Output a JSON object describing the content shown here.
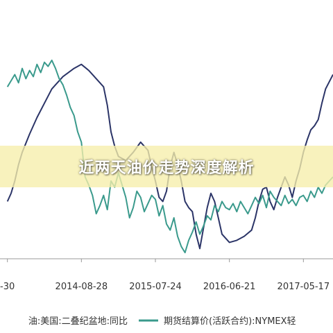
{
  "chart_data": {
    "type": "line",
    "title": "",
    "xlabel": "",
    "ylabel": "",
    "x_tick_labels": [
      "-30",
      "2014-08-28",
      "2015-07-24",
      "2016-06-21",
      "2017-05-17"
    ],
    "x_tick_positions": [
      0.0,
      1.0,
      2.0,
      3.0,
      4.0
    ],
    "xlim": [
      -0.1,
      4.4
    ],
    "ylim": [
      0,
      100
    ],
    "grid": false,
    "legend_placement": "bottom",
    "series": [
      {
        "name": "油:美国:二叠纪盆地:同比",
        "color": "#2b3467",
        "x": [
          0.0,
          0.05,
          0.1,
          0.15,
          0.2,
          0.3,
          0.4,
          0.5,
          0.6,
          0.75,
          0.9,
          1.0,
          1.1,
          1.2,
          1.3,
          1.35,
          1.4,
          1.45,
          1.5,
          1.6,
          1.7,
          1.8,
          1.9,
          1.95,
          2.0,
          2.05,
          2.1,
          2.15,
          2.2,
          2.25,
          2.3,
          2.35,
          2.4,
          2.45,
          2.5,
          2.55,
          2.6,
          2.65,
          2.7,
          2.75,
          2.8,
          2.85,
          2.9,
          3.0,
          3.1,
          3.2,
          3.3,
          3.35,
          3.4,
          3.45,
          3.5,
          3.55,
          3.6,
          3.65,
          3.7,
          3.75,
          3.8,
          3.85,
          3.9,
          3.95,
          4.0,
          4.05,
          4.1,
          4.15,
          4.2,
          4.25,
          4.3,
          4.4
        ],
        "values": [
          28,
          32,
          38,
          46,
          52,
          61,
          69,
          76,
          83,
          89,
          93,
          95,
          92,
          88,
          84,
          75,
          62,
          55,
          50,
          48,
          52,
          57,
          53,
          45,
          38,
          30,
          28,
          33,
          45,
          52,
          46,
          38,
          28,
          25,
          23,
          12,
          5,
          15,
          25,
          32,
          28,
          20,
          12,
          8,
          9,
          11,
          14,
          20,
          28,
          34,
          35,
          28,
          24,
          30,
          35,
          40,
          36,
          30,
          38,
          44,
          52,
          58,
          63,
          65,
          68,
          76,
          83,
          90
        ]
      },
      {
        "name": "期货结算价(活跃合约):NYMEX轻",
        "color": "#3a9a8c",
        "x": [
          0.0,
          0.05,
          0.1,
          0.15,
          0.2,
          0.25,
          0.3,
          0.35,
          0.4,
          0.45,
          0.5,
          0.55,
          0.6,
          0.65,
          0.7,
          0.75,
          0.8,
          0.85,
          0.9,
          0.95,
          1.0,
          1.05,
          1.1,
          1.15,
          1.2,
          1.25,
          1.3,
          1.35,
          1.4,
          1.45,
          1.5,
          1.55,
          1.6,
          1.65,
          1.7,
          1.75,
          1.8,
          1.85,
          1.9,
          1.95,
          2.0,
          2.05,
          2.1,
          2.15,
          2.2,
          2.25,
          2.3,
          2.35,
          2.4,
          2.45,
          2.5,
          2.55,
          2.6,
          2.65,
          2.7,
          2.75,
          2.8,
          2.85,
          2.9,
          2.95,
          3.0,
          3.05,
          3.1,
          3.15,
          3.2,
          3.25,
          3.3,
          3.35,
          3.4,
          3.45,
          3.5,
          3.55,
          3.6,
          3.65,
          3.7,
          3.75,
          3.8,
          3.85,
          3.9,
          3.95,
          4.0,
          4.05,
          4.1,
          4.15,
          4.2,
          4.25,
          4.3,
          4.4
        ],
        "values": [
          84,
          87,
          90,
          86,
          93,
          88,
          92,
          89,
          95,
          91,
          96,
          94,
          97,
          93,
          88,
          85,
          80,
          74,
          70,
          62,
          57,
          40,
          36,
          31,
          22,
          26,
          31,
          24,
          38,
          35,
          42,
          36,
          30,
          20,
          25,
          33,
          30,
          23,
          27,
          31,
          29,
          21,
          26,
          17,
          14,
          20,
          11,
          6,
          3,
          9,
          13,
          18,
          12,
          16,
          21,
          19,
          26,
          23,
          28,
          25,
          24,
          27,
          23,
          28,
          25,
          22,
          26,
          30,
          27,
          31,
          25,
          33,
          30,
          28,
          26,
          31,
          27,
          29,
          26,
          30,
          31,
          28,
          33,
          30,
          35,
          32,
          36,
          40
        ]
      }
    ]
  },
  "legend": [
    {
      "label": "油:美国:二叠纪盆地:同比",
      "color": "#2b3467"
    },
    {
      "label": "期货结算价(活跃合约):NYMEX轻",
      "color": "#3a9a8c"
    }
  ],
  "banner": {
    "title": "近两天油价走势深度解析"
  }
}
